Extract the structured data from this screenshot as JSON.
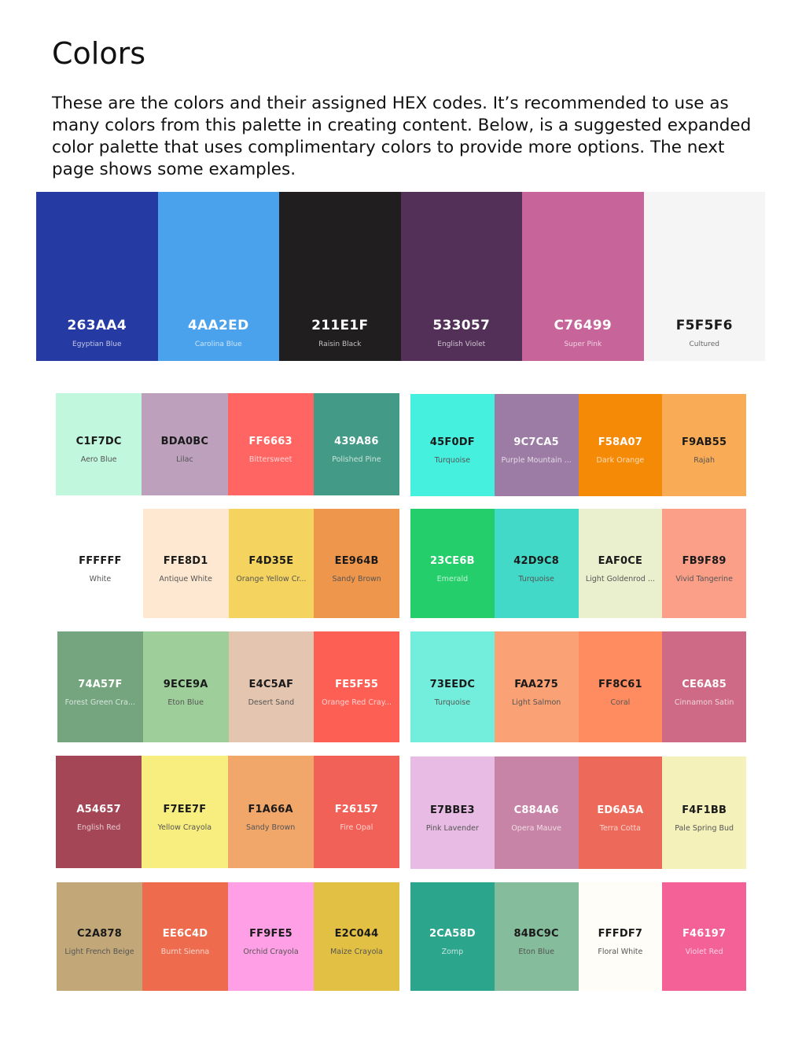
{
  "page": {
    "title": "Colors",
    "intro": "These are the colors and their assigned HEX codes. It’s recommended to use as many colors from this palette in creating content. Below, is a suggested expanded color palette that uses complimentary colors to provide more options. The next page shows some examples."
  },
  "main_palette": [
    {
      "hex": "263AA4",
      "name": "Egyptian Blue",
      "color": "#263AA4",
      "text": "light"
    },
    {
      "hex": "4AA2ED",
      "name": "Carolina Blue",
      "color": "#4AA2ED",
      "text": "light"
    },
    {
      "hex": "211E1F",
      "name": "Raisin Black",
      "color": "#211E1F",
      "text": "light"
    },
    {
      "hex": "533057",
      "name": "English Violet",
      "color": "#533057",
      "text": "light"
    },
    {
      "hex": "C76499",
      "name": "Super Pink",
      "color": "#C76499",
      "text": "light"
    },
    {
      "hex": "F5F5F6",
      "name": "Cultured",
      "color": "#F5F5F6",
      "text": "dark"
    }
  ],
  "left_rows": [
    [
      {
        "hex": "C1F7DC",
        "name": "Aero Blue",
        "color": "#C1F7DC",
        "text": "dark"
      },
      {
        "hex": "BDA0BC",
        "name": "Lilac",
        "color": "#BDA0BC",
        "text": "dark"
      },
      {
        "hex": "FF6663",
        "name": "Bittersweet",
        "color": "#FF6663",
        "text": "light"
      },
      {
        "hex": "439A86",
        "name": "Polished Pine",
        "color": "#439A86",
        "text": "light"
      }
    ],
    [
      {
        "hex": "FFFFFF",
        "name": "White",
        "color": "#FFFFFF",
        "text": "dark"
      },
      {
        "hex": "FFE8D1",
        "name": "Antique White",
        "color": "#FFE8D1",
        "text": "dark"
      },
      {
        "hex": "F4D35E",
        "name": "Orange Yellow Cr...",
        "color": "#F4D35E",
        "text": "dark"
      },
      {
        "hex": "EE964B",
        "name": "Sandy Brown",
        "color": "#EE964B",
        "text": "dark"
      }
    ],
    [
      {
        "hex": "74A57F",
        "name": "Forest Green Cra...",
        "color": "#74A57F",
        "text": "light"
      },
      {
        "hex": "9ECE9A",
        "name": "Eton Blue",
        "color": "#9ECE9A",
        "text": "dark"
      },
      {
        "hex": "E4C5AF",
        "name": "Desert Sand",
        "color": "#E4C5AF",
        "text": "dark"
      },
      {
        "hex": "FE5F55",
        "name": "Orange Red Cray...",
        "color": "#FE5F55",
        "text": "light"
      }
    ],
    [
      {
        "hex": "A54657",
        "name": "English Red",
        "color": "#A54657",
        "text": "light"
      },
      {
        "hex": "F7EE7F",
        "name": "Yellow Crayola",
        "color": "#F7EE7F",
        "text": "dark"
      },
      {
        "hex": "F1A66A",
        "name": "Sandy Brown",
        "color": "#F1A66A",
        "text": "dark"
      },
      {
        "hex": "F26157",
        "name": "Fire Opal",
        "color": "#F26157",
        "text": "light"
      }
    ],
    [
      {
        "hex": "C2A878",
        "name": "Light French Beige",
        "color": "#C2A878",
        "text": "dark"
      },
      {
        "hex": "EE6C4D",
        "name": "Burnt Sienna",
        "color": "#EE6C4D",
        "text": "light"
      },
      {
        "hex": "FF9FE5",
        "name": "Orchid Crayola",
        "color": "#FF9FE5",
        "text": "dark"
      },
      {
        "hex": "E2C044",
        "name": "Maize Crayola",
        "color": "#E2C044",
        "text": "dark"
      }
    ]
  ],
  "right_rows": [
    [
      {
        "hex": "45F0DF",
        "name": "Turquoise",
        "color": "#45F0DF",
        "text": "dark"
      },
      {
        "hex": "9C7CA5",
        "name": "Purple Mountain ...",
        "color": "#9C7CA5",
        "text": "light"
      },
      {
        "hex": "F58A07",
        "name": "Dark Orange",
        "color": "#F58A07",
        "text": "light"
      },
      {
        "hex": "F9AB55",
        "name": "Rajah",
        "color": "#F9AB55",
        "text": "dark"
      }
    ],
    [
      {
        "hex": "23CE6B",
        "name": "Emerald",
        "color": "#23CE6B",
        "text": "light"
      },
      {
        "hex": "42D9C8",
        "name": "Turquoise",
        "color": "#42D9C8",
        "text": "dark"
      },
      {
        "hex": "EAF0CE",
        "name": "Light Goldenrod ...",
        "color": "#EAF0CE",
        "text": "dark"
      },
      {
        "hex": "FB9F89",
        "name": "Vivid Tangerine",
        "color": "#FB9F89",
        "text": "dark"
      }
    ],
    [
      {
        "hex": "73EEDC",
        "name": "Turquoise",
        "color": "#73EEDC",
        "text": "dark"
      },
      {
        "hex": "FAA275",
        "name": "Light Salmon",
        "color": "#FAA275",
        "text": "dark"
      },
      {
        "hex": "FF8C61",
        "name": "Coral",
        "color": "#FF8C61",
        "text": "dark"
      },
      {
        "hex": "CE6A85",
        "name": "Cinnamon Satin",
        "color": "#CE6A85",
        "text": "light"
      }
    ],
    [
      {
        "hex": "E7BBE3",
        "name": "Pink Lavender",
        "color": "#E7BBE3",
        "text": "dark"
      },
      {
        "hex": "C884A6",
        "name": "Opera Mauve",
        "color": "#C884A6",
        "text": "light"
      },
      {
        "hex": "ED6A5A",
        "name": "Terra Cotta",
        "color": "#ED6A5A",
        "text": "light"
      },
      {
        "hex": "F4F1BB",
        "name": "Pale Spring Bud",
        "color": "#F4F1BB",
        "text": "dark"
      }
    ],
    [
      {
        "hex": "2CA58D",
        "name": "Zomp",
        "color": "#2CA58D",
        "text": "light"
      },
      {
        "hex": "84BC9C",
        "name": "Eton Blue",
        "color": "#84BC9C",
        "text": "dark"
      },
      {
        "hex": "FFFDF7",
        "name": "Floral White",
        "color": "#FFFDF7",
        "text": "dark"
      },
      {
        "hex": "F46197",
        "name": "Violet Red",
        "color": "#F46197",
        "text": "light"
      }
    ]
  ]
}
